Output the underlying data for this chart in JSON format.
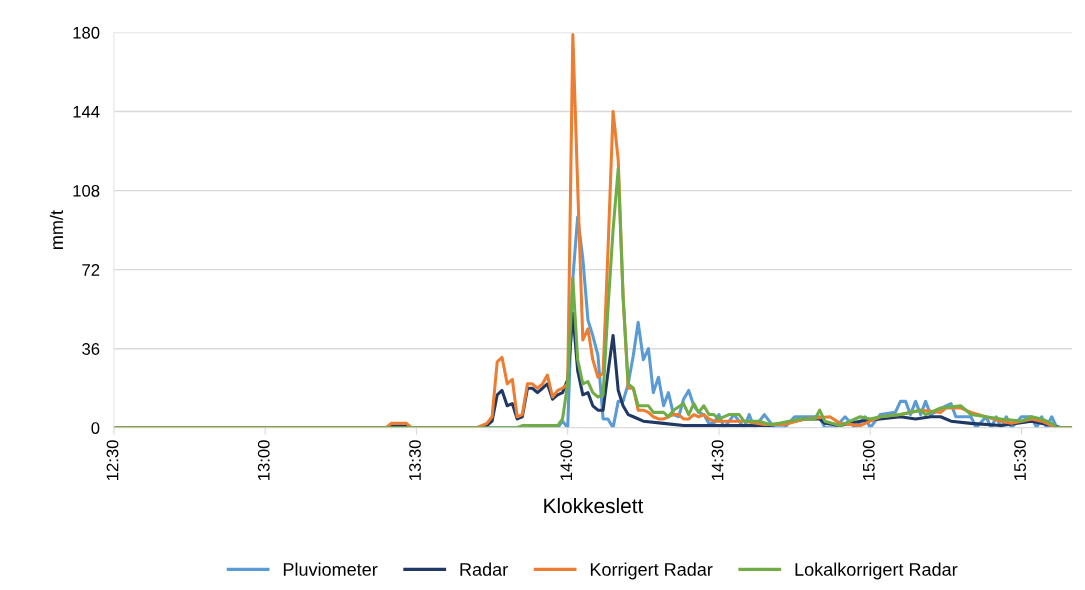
{
  "chart_data": {
    "type": "line",
    "xlabel": "Klokkeslett",
    "ylabel": "mm/t",
    "xlim": [
      12.5,
      15.667
    ],
    "xticks": [
      {
        "value": 12.5,
        "label": "12:30"
      },
      {
        "value": 13,
        "label": "13:00"
      },
      {
        "value": 13.5,
        "label": "13:30"
      },
      {
        "value": 14,
        "label": "14:00"
      },
      {
        "value": 14.5,
        "label": "14:30"
      },
      {
        "value": 15,
        "label": "15:00"
      },
      {
        "value": 15.5,
        "label": "15:30"
      }
    ],
    "ylim": [
      0,
      180
    ],
    "yticks": [
      0,
      36,
      72,
      108,
      144,
      180
    ],
    "grid": "y",
    "legend": "bottom",
    "marker": "none",
    "line_style": "solid",
    "series": [
      {
        "name": "Pluviometer",
        "color": "#5b9bd5",
        "x": [
          12.5,
          13.967,
          13.983,
          14.0,
          14.017,
          14.033,
          14.05,
          14.067,
          14.083,
          14.1,
          14.117,
          14.133,
          14.15,
          14.167,
          14.183,
          14.2,
          14.217,
          14.233,
          14.25,
          14.267,
          14.283,
          14.3,
          14.317,
          14.333,
          14.35,
          14.367,
          14.383,
          14.4,
          14.417,
          14.433,
          14.45,
          14.467,
          14.483,
          14.5,
          14.517,
          14.55,
          14.583,
          14.6,
          14.617,
          14.65,
          14.683,
          14.717,
          14.75,
          14.833,
          14.85,
          14.883,
          14.917,
          14.95,
          14.983,
          15.0,
          15.033,
          15.083,
          15.1,
          15.117,
          15.133,
          15.15,
          15.167,
          15.183,
          15.2,
          15.25,
          15.267,
          15.283,
          15.333,
          15.35,
          15.383,
          15.4,
          15.417,
          15.433,
          15.45,
          15.467,
          15.5,
          15.533,
          15.55,
          15.567,
          15.583,
          15.6,
          15.617,
          15.667
        ],
        "values": [
          0,
          0,
          3,
          0,
          68,
          96,
          77,
          49,
          42,
          33,
          4,
          4,
          0,
          12,
          12,
          20,
          33,
          48,
          31,
          36,
          16,
          23,
          10,
          16,
          6,
          5,
          13,
          17,
          10,
          7,
          6,
          2,
          2,
          6,
          0,
          6,
          0,
          6,
          0,
          6,
          0,
          0,
          5,
          5,
          0,
          0,
          5,
          0,
          5,
          0,
          6,
          7,
          12,
          12,
          6,
          12,
          6,
          12,
          6,
          10,
          11,
          5,
          5,
          0,
          5,
          0,
          5,
          0,
          5,
          0,
          5,
          5,
          0,
          5,
          0,
          5,
          0,
          0
        ]
      },
      {
        "name": "Radar",
        "color": "#1f3864",
        "x": [
          12.5,
          13.4,
          13.417,
          13.467,
          13.483,
          13.7,
          13.733,
          13.75,
          13.767,
          13.783,
          13.8,
          13.817,
          13.833,
          13.85,
          13.867,
          13.883,
          13.9,
          13.917,
          13.933,
          13.95,
          13.967,
          13.983,
          14.0,
          14.017,
          14.033,
          14.05,
          14.067,
          14.083,
          14.1,
          14.117,
          14.133,
          14.15,
          14.167,
          14.183,
          14.2,
          14.217,
          14.25,
          14.317,
          14.383,
          14.583,
          14.667,
          14.75,
          14.783,
          14.833,
          14.85,
          14.9,
          14.967,
          15.033,
          15.1,
          15.15,
          15.2,
          15.233,
          15.267,
          15.333,
          15.433,
          15.533,
          15.6,
          15.633,
          15.667
        ],
        "values": [
          0,
          0,
          1,
          1,
          0,
          0,
          1,
          3,
          15,
          17,
          10,
          11,
          4,
          5,
          18,
          18,
          16,
          18,
          20,
          13,
          15,
          16,
          22,
          52,
          26,
          15,
          16,
          10,
          8,
          8,
          25,
          42,
          17,
          10,
          6,
          5,
          3,
          2,
          1,
          1,
          1,
          3,
          4,
          4,
          2,
          1,
          3,
          4,
          5,
          4,
          5,
          5,
          3,
          2,
          1,
          3,
          1,
          0,
          0
        ]
      },
      {
        "name": "Korrigert Radar",
        "color": "#ed7d31",
        "x": [
          12.5,
          13.4,
          13.417,
          13.467,
          13.483,
          13.7,
          13.733,
          13.75,
          13.767,
          13.783,
          13.8,
          13.817,
          13.833,
          13.85,
          13.867,
          13.883,
          13.9,
          13.917,
          13.933,
          13.95,
          13.967,
          13.983,
          14.0,
          14.017,
          14.033,
          14.05,
          14.067,
          14.083,
          14.1,
          14.117,
          14.133,
          14.15,
          14.167,
          14.183,
          14.2,
          14.217,
          14.233,
          14.25,
          14.267,
          14.283,
          14.3,
          14.317,
          14.333,
          14.35,
          14.367,
          14.383,
          14.4,
          14.417,
          14.433,
          14.45,
          14.467,
          14.483,
          14.5,
          14.583,
          14.65,
          14.717,
          14.783,
          14.867,
          14.9,
          14.967,
          15.0,
          15.033,
          15.1,
          15.167,
          15.233,
          15.25,
          15.3,
          15.333,
          15.433,
          15.467,
          15.5,
          15.533,
          15.567,
          15.617,
          15.667
        ],
        "values": [
          0,
          0,
          2,
          2,
          0,
          0,
          2,
          5,
          30,
          32,
          20,
          22,
          5,
          6,
          20,
          20,
          18,
          20,
          24,
          14,
          17,
          18,
          20,
          179,
          110,
          40,
          45,
          31,
          23,
          25,
          80,
          144,
          122,
          60,
          18,
          18,
          8,
          8,
          7,
          5,
          4,
          4,
          5,
          6,
          6,
          4,
          4,
          6,
          5,
          6,
          4,
          3,
          3,
          3,
          1.5,
          1.5,
          4,
          5,
          2,
          1,
          3,
          5,
          6,
          8,
          7,
          9,
          9,
          7,
          3,
          2,
          3,
          4,
          3,
          0,
          0
        ]
      },
      {
        "name": "Lokalkorrigert Radar",
        "color": "#70ad47",
        "x": [
          12.5,
          13.833,
          13.85,
          13.967,
          13.983,
          14.0,
          14.017,
          14.033,
          14.05,
          14.067,
          14.083,
          14.1,
          14.117,
          14.133,
          14.15,
          14.167,
          14.183,
          14.2,
          14.217,
          14.233,
          14.267,
          14.283,
          14.317,
          14.333,
          14.35,
          14.383,
          14.4,
          14.417,
          14.433,
          14.45,
          14.467,
          14.483,
          14.5,
          14.533,
          14.567,
          14.583,
          14.633,
          14.667,
          14.7,
          14.767,
          14.817,
          14.833,
          14.85,
          14.9,
          14.967,
          15.0,
          15.033,
          15.1,
          15.167,
          15.183,
          15.233,
          15.3,
          15.333,
          15.433,
          15.5,
          15.533,
          15.567,
          15.6,
          15.617,
          15.667
        ],
        "values": [
          0,
          0,
          1,
          1,
          4,
          20,
          68,
          31,
          20,
          21,
          16,
          14,
          15,
          54,
          90,
          118,
          60,
          20,
          18,
          10,
          10,
          7,
          7,
          5,
          8,
          11,
          6,
          11,
          7,
          10,
          6,
          6,
          4,
          6,
          6,
          3,
          3,
          1.5,
          2,
          4,
          4,
          8,
          3,
          1,
          5,
          4,
          5,
          6,
          8,
          6,
          9,
          10,
          6,
          4,
          3,
          5,
          4,
          2,
          0,
          0
        ]
      }
    ]
  }
}
